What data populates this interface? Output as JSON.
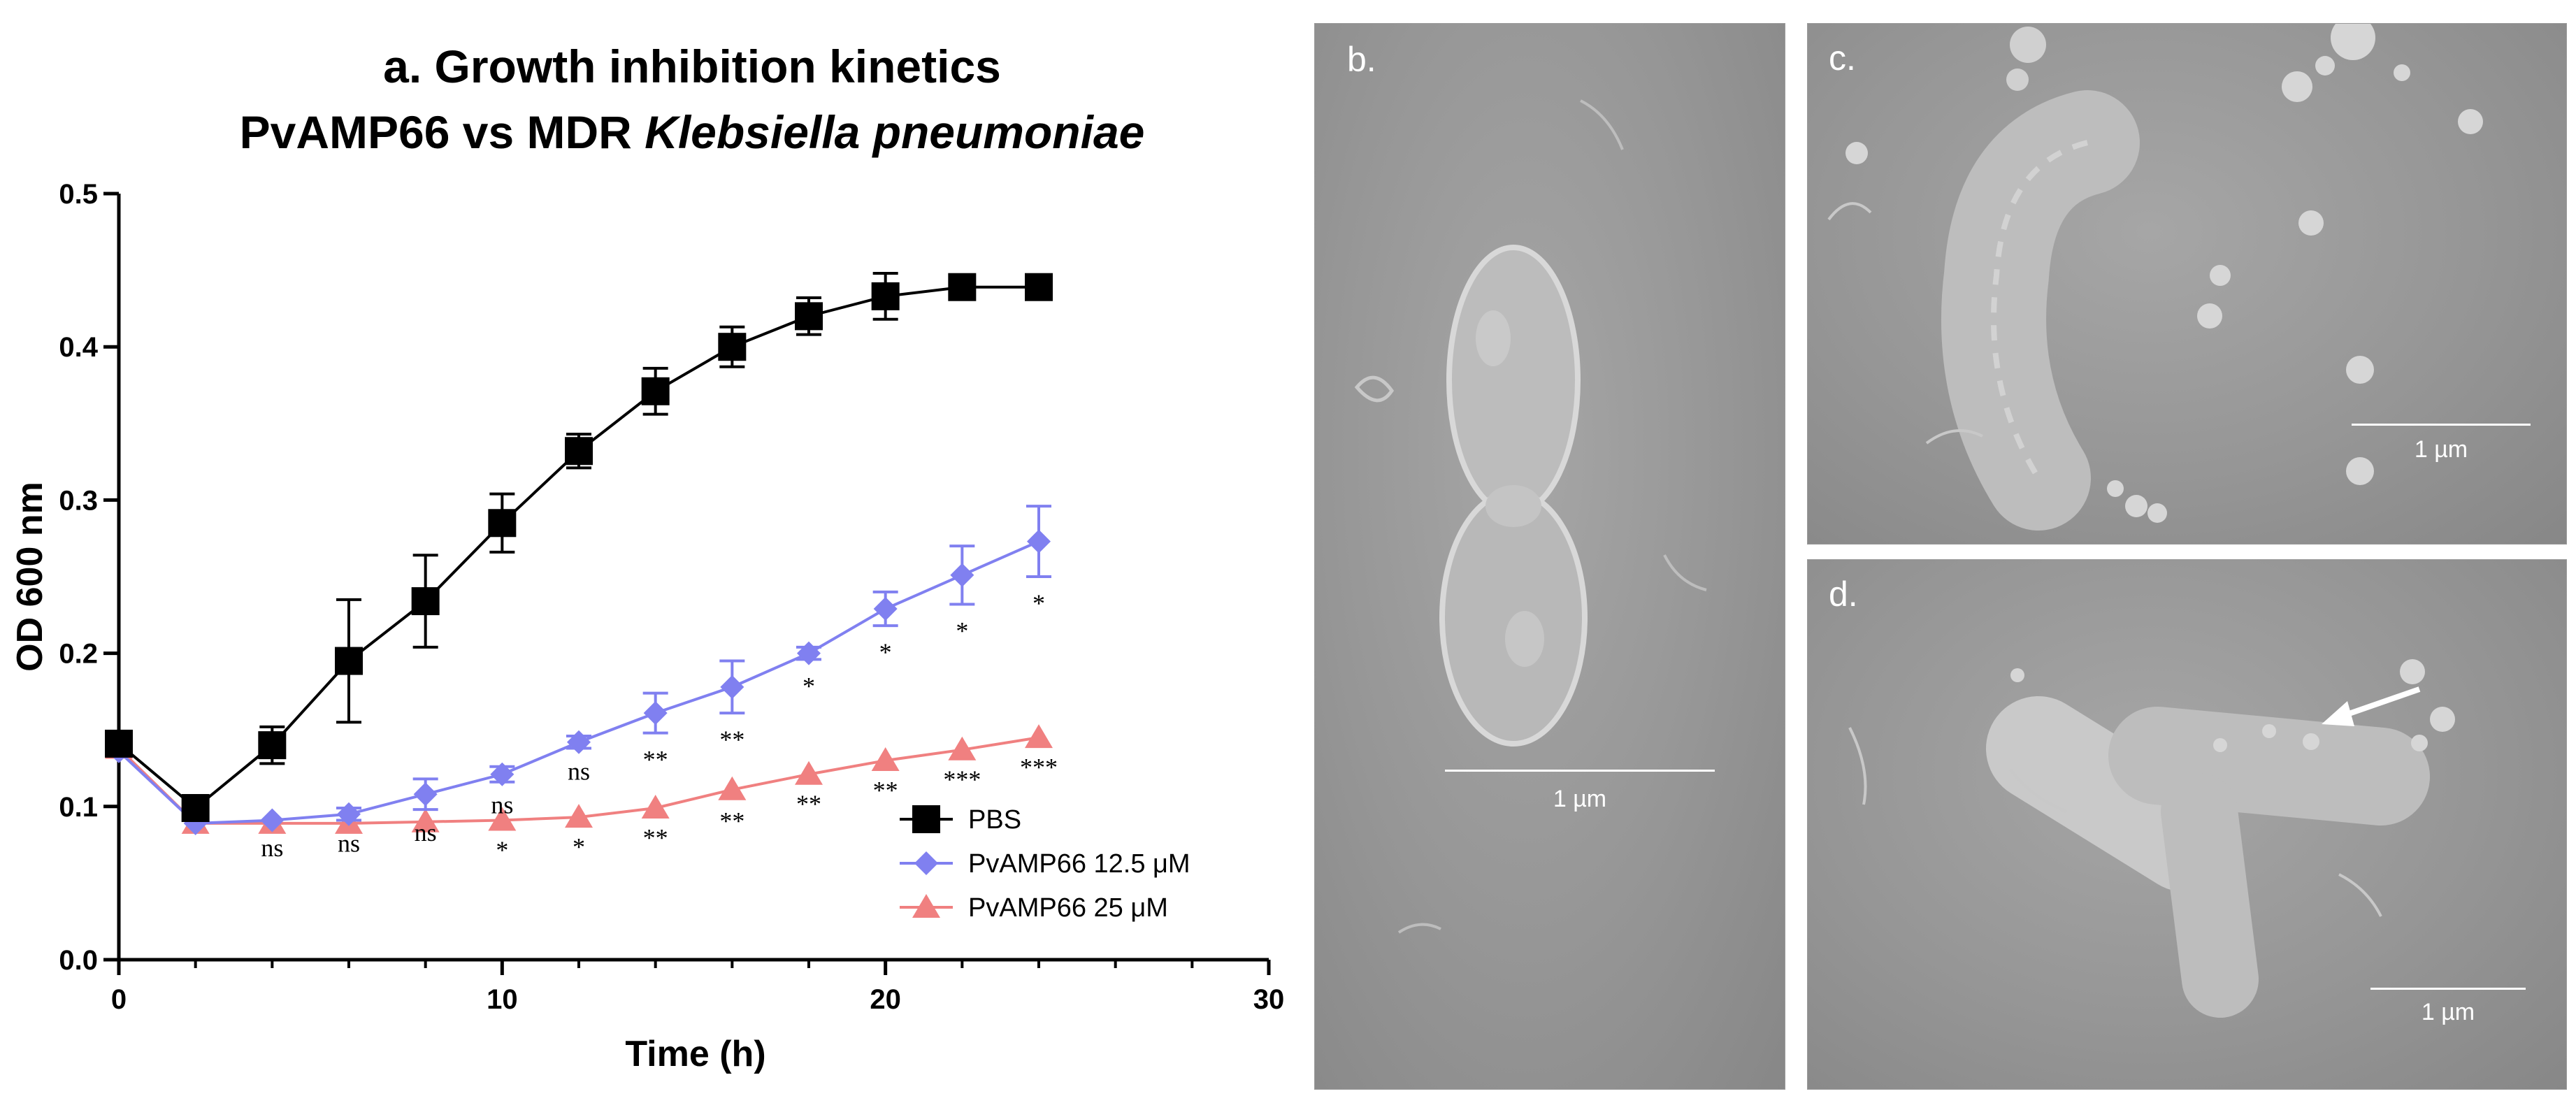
{
  "chart_data": {
    "type": "line",
    "title_line1": "a. Growth inhibition kinetics",
    "title_line2_plain": "PvAMP66 vs MDR ",
    "title_line2_italic": "Klebsiella pneumoniae",
    "xlabel": "Time (h)",
    "ylabel": "OD 600 nm",
    "xlim": [
      0,
      30
    ],
    "ylim": [
      0,
      0.5
    ],
    "xticks": [
      0,
      10,
      20,
      30
    ],
    "yticks": [
      0.0,
      0.1,
      0.2,
      0.3,
      0.4,
      0.5
    ],
    "ytick_labels": [
      "0.0",
      "0.1",
      "0.2",
      "0.3",
      "0.4",
      "0.5"
    ],
    "legend_position": "bottom-right",
    "series": [
      {
        "name": "PBS",
        "marker": "square",
        "color": "#000000",
        "x": [
          0,
          2,
          4,
          6,
          8,
          10,
          12,
          14,
          16,
          18,
          20,
          22,
          24
        ],
        "y": [
          0.141,
          0.099,
          0.14,
          0.195,
          0.234,
          0.285,
          0.332,
          0.371,
          0.4,
          0.42,
          0.433,
          0.439,
          0.439
        ],
        "err": [
          0.004,
          0.004,
          0.012,
          0.04,
          0.03,
          0.019,
          0.011,
          0.015,
          0.013,
          0.012,
          0.015,
          0.003,
          0.002
        ]
      },
      {
        "name": "PvAMP66 12.5 μM",
        "marker": "diamond",
        "color": "#8080f0",
        "x": [
          0,
          2,
          4,
          6,
          8,
          10,
          12,
          14,
          16,
          18,
          20,
          22,
          24
        ],
        "y": [
          0.136,
          0.089,
          0.091,
          0.095,
          0.108,
          0.121,
          0.142,
          0.161,
          0.178,
          0.2,
          0.229,
          0.251,
          0.273
        ],
        "err": [
          0.002,
          0.002,
          0.003,
          0.004,
          0.01,
          0.005,
          0.004,
          0.013,
          0.017,
          0.004,
          0.011,
          0.019,
          0.023
        ],
        "significance": [
          "",
          "",
          "ns",
          "ns",
          "ns",
          "ns",
          "ns",
          "**",
          "**",
          "*",
          "*",
          "*",
          "*"
        ]
      },
      {
        "name": "PvAMP66 25 μM",
        "marker": "triangle",
        "color": "#f08080",
        "x": [
          0,
          2,
          4,
          6,
          8,
          10,
          12,
          14,
          16,
          18,
          20,
          22,
          24
        ],
        "y": [
          0.138,
          0.089,
          0.089,
          0.089,
          0.09,
          0.091,
          0.093,
          0.099,
          0.111,
          0.121,
          0.13,
          0.137,
          0.145
        ],
        "err": [
          0.002,
          0.002,
          0.002,
          0.002,
          0.002,
          0.002,
          0.002,
          0.002,
          0.003,
          0.002,
          0.002,
          0.002,
          0.002
        ],
        "significance": [
          "",
          "",
          "",
          "",
          "",
          "*",
          "*",
          "**",
          "**",
          "**",
          "**",
          "***",
          "***"
        ]
      }
    ]
  },
  "panels": {
    "b": {
      "label": "b.",
      "scale_text": "1 µm"
    },
    "c": {
      "label": "c.",
      "scale_text": "1 µm"
    },
    "d": {
      "label": "d.",
      "scale_text": "1 µm"
    }
  }
}
